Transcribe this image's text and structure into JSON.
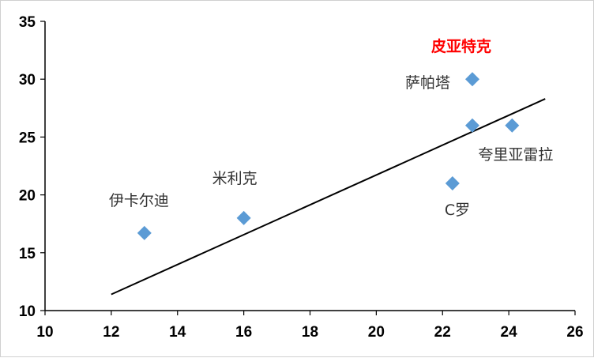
{
  "chart_data": {
    "type": "scatter",
    "title": "",
    "xlabel": "",
    "ylabel": "",
    "xlim": [
      10,
      26
    ],
    "ylim": [
      10,
      35
    ],
    "x_ticks": [
      10,
      12,
      14,
      16,
      18,
      20,
      22,
      24,
      26
    ],
    "y_ticks": [
      10,
      15,
      20,
      25,
      30,
      35
    ],
    "grid": false,
    "marker": "diamond",
    "marker_color": "#5b9bd5",
    "highlight_color": "#ff0000",
    "points": [
      {
        "label": "伊卡尔迪",
        "x": 13.0,
        "y": 16.7,
        "highlight": false
      },
      {
        "label": "米利克",
        "x": 16.0,
        "y": 18.0,
        "highlight": false
      },
      {
        "label": "C罗",
        "x": 22.3,
        "y": 21.0,
        "highlight": false
      },
      {
        "label": "萨帕塔",
        "x": 22.9,
        "y": 26.0,
        "highlight": false
      },
      {
        "label": "皮亚特克",
        "x": 22.9,
        "y": 30.0,
        "highlight": true
      },
      {
        "label": "夸里亚雷拉",
        "x": 24.1,
        "y": 26.0,
        "highlight": false
      }
    ],
    "trendline": {
      "type": "linear",
      "x": [
        12.0,
        25.1
      ],
      "y": [
        11.4,
        28.3
      ],
      "color": "#000000"
    }
  }
}
